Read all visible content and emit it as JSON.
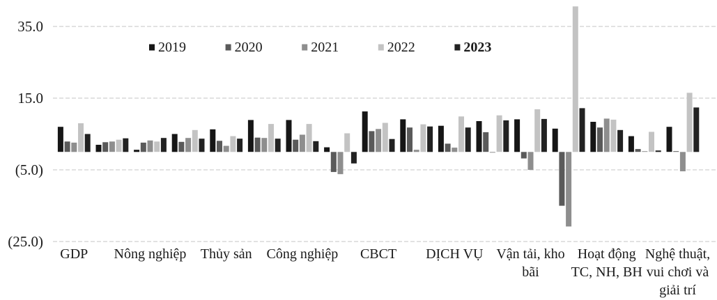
{
  "chart_data": {
    "type": "bar",
    "title": "",
    "xlabel": "",
    "ylabel": "",
    "categories": [
      "GDP",
      "",
      "Nông nghiệp",
      "",
      "Thủy sản",
      "",
      "Công nghiệp",
      "",
      "CBCT",
      "",
      "DỊCH VỤ",
      "",
      "Vận tải, kho bãi",
      "",
      "Hoạt động TC, NH, BH",
      "",
      "Nghệ thuật, vui chơi và giải trí"
    ],
    "series": [
      {
        "name": "2019",
        "color": "#161616",
        "values": [
          7.0,
          2.0,
          0.6,
          5.0,
          6.3,
          8.9,
          8.9,
          1.3,
          11.3,
          9.1,
          7.3,
          8.6,
          9.1,
          6.5,
          8.4,
          4.4,
          7.0
        ]
      },
      {
        "name": "2020",
        "color": "#5a5a5a",
        "values": [
          2.9,
          2.7,
          2.6,
          2.8,
          3.1,
          4.0,
          3.4,
          -5.6,
          5.8,
          6.8,
          2.3,
          5.5,
          -1.8,
          -15.0,
          6.8,
          0.8,
          0.2
        ]
      },
      {
        "name": "2021",
        "color": "#8e8e8e",
        "values": [
          2.6,
          2.9,
          3.2,
          3.9,
          1.7,
          3.9,
          4.8,
          -6.2,
          6.4,
          0.6,
          1.2,
          -0.2,
          -5.0,
          -20.8,
          9.3,
          0.2,
          -5.4
        ]
      },
      {
        "name": "2022",
        "color": "#c3c3c3",
        "values": [
          8.0,
          3.4,
          2.9,
          6.1,
          4.4,
          7.8,
          7.8,
          5.2,
          8.1,
          7.7,
          9.9,
          10.2,
          11.9,
          40.6,
          9.0,
          5.6,
          16.5
        ]
      },
      {
        "name": "2023",
        "color": "#222222",
        "bold": true,
        "values": [
          5.0,
          3.8,
          3.9,
          3.7,
          3.7,
          3.7,
          3.0,
          -3.2,
          3.6,
          7.1,
          6.8,
          8.8,
          9.2,
          12.2,
          6.1,
          0.4,
          12.4
        ]
      }
    ],
    "yticks": [
      35,
      15,
      -5,
      -25
    ],
    "ytick_labels": [
      "35.0",
      "15.0",
      "(5.0)",
      "(25.0)"
    ],
    "ylim": [
      -25,
      42
    ],
    "grid": true,
    "legend": "top"
  }
}
